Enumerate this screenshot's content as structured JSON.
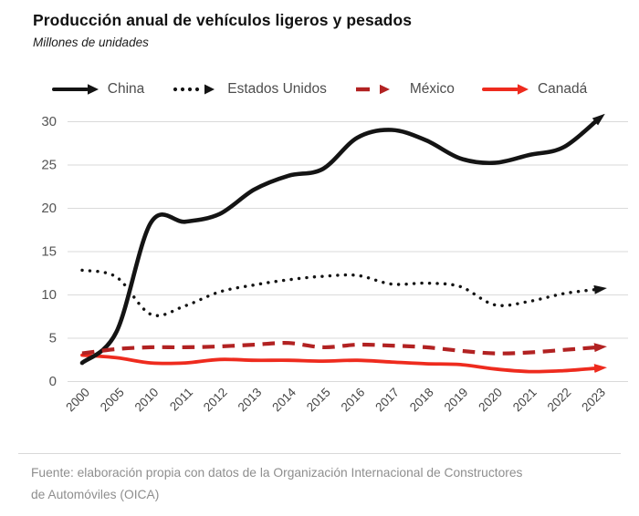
{
  "header": {
    "title": "Producción anual de vehículos ligeros y pesados",
    "subtitle": "Millones de unidades"
  },
  "chart_data": {
    "type": "line",
    "categories": [
      "2000",
      "2005",
      "2010",
      "2011",
      "2012",
      "2013",
      "2014",
      "2015",
      "2016",
      "2017",
      "2018",
      "2019",
      "2020",
      "2021",
      "2022",
      "2023"
    ],
    "series": [
      {
        "name": "China",
        "style": "solid",
        "color": "#141414",
        "values": [
          2.1,
          5.7,
          18.3,
          18.4,
          19.3,
          22.1,
          23.7,
          24.5,
          28.1,
          29.0,
          27.8,
          25.7,
          25.2,
          26.1,
          27.0,
          30.2
        ]
      },
      {
        "name": "Estados Unidos",
        "style": "dotted",
        "color": "#141414",
        "values": [
          12.8,
          12.0,
          7.7,
          8.7,
          10.3,
          11.1,
          11.7,
          12.1,
          12.2,
          11.2,
          11.3,
          10.9,
          8.8,
          9.2,
          10.1,
          10.6
        ]
      },
      {
        "name": "México",
        "style": "dashed",
        "color": "#b22222",
        "values": [
          3.2,
          3.7,
          3.9,
          3.9,
          4.0,
          4.2,
          4.4,
          3.9,
          4.2,
          4.1,
          3.9,
          3.5,
          3.2,
          3.3,
          3.6,
          3.9
        ]
      },
      {
        "name": "Canadá",
        "style": "solid",
        "color": "#ee2b1e",
        "values": [
          3.0,
          2.7,
          2.1,
          2.1,
          2.5,
          2.4,
          2.4,
          2.3,
          2.4,
          2.2,
          2.0,
          1.9,
          1.4,
          1.1,
          1.2,
          1.5
        ]
      }
    ],
    "title": "Producción anual de vehículos ligeros y pesados",
    "xlabel": "",
    "ylabel": "Millones de unidades",
    "yticks": [
      0,
      5,
      10,
      15,
      20,
      25,
      30
    ],
    "ylim": [
      0,
      30
    ],
    "grid": true,
    "legend_position": "top",
    "line_end_marker": "arrow",
    "colors": {
      "gridline": "#dadada",
      "ytick_text": "#555555",
      "xtick_text": "#454545",
      "legend_text": "#4d4d4d"
    }
  },
  "footer": {
    "source_line1": "Fuente: elaboración propia con datos de la Organización Internacional de Constructores",
    "source_line2": "de Automóviles (OICA)"
  }
}
